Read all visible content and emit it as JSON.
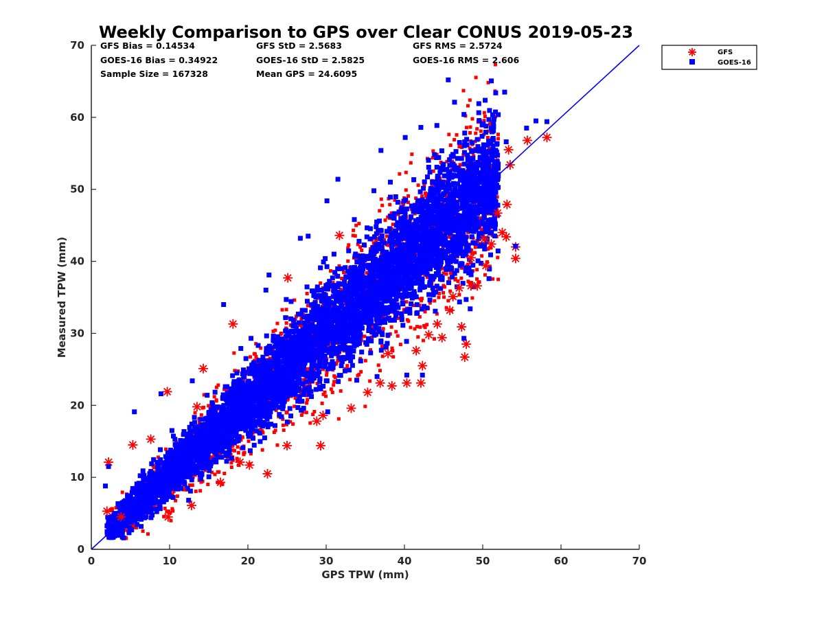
{
  "chart_data": {
    "type": "scatter",
    "title": "Weekly Comparison to GPS over Clear CONUS 2019-05-23",
    "xlabel": "GPS TPW (mm)",
    "ylabel": "Measured TPW (mm)",
    "xlim": [
      0,
      70
    ],
    "ylim": [
      0,
      70
    ],
    "xticks": [
      "0",
      "10",
      "20",
      "30",
      "40",
      "50",
      "60",
      "70"
    ],
    "yticks": [
      "0",
      "10",
      "20",
      "30",
      "40",
      "50",
      "60",
      "70"
    ],
    "grid": false,
    "legend_position": "outside top-right",
    "stats": {
      "gfs_bias": "GFS Bias = 0.14534",
      "gfs_std": "GFS StD = 2.5683",
      "gfs_rms": "GFS RMS = 2.5724",
      "goes_bias": "GOES-16 Bias = 0.34922",
      "goes_std": "GOES-16 StD = 2.5825",
      "goes_rms": "GOES-16 RMS = 2.606",
      "sample_size": "Sample Size = 167328",
      "mean_gps": "Mean GPS = 24.6095"
    },
    "reference_line": {
      "x": [
        0,
        70
      ],
      "y": [
        0,
        70
      ],
      "color": "#0000ff"
    },
    "series": [
      {
        "name": "GFS",
        "marker": "asterisk",
        "color": "#ff0000",
        "points": [
          [
            2.2,
            12.1
          ],
          [
            5.3,
            14.5
          ],
          [
            9.7,
            21.9
          ],
          [
            18.1,
            31.3
          ],
          [
            22.5,
            10.5
          ],
          [
            29.3,
            14.4
          ],
          [
            29.6,
            18.6
          ],
          [
            38.4,
            22.7
          ],
          [
            40.3,
            23.1
          ],
          [
            42.1,
            23.1
          ],
          [
            41.5,
            27.6
          ],
          [
            42.3,
            25.5
          ],
          [
            44.2,
            31.3
          ],
          [
            44.8,
            29.4
          ],
          [
            45.8,
            33.2
          ],
          [
            47.3,
            30.9
          ],
          [
            47.7,
            26.7
          ],
          [
            47.9,
            28.5
          ],
          [
            48.5,
            36.6
          ],
          [
            49.3,
            36.6
          ],
          [
            50.4,
            39.4
          ],
          [
            51.1,
            42.4
          ],
          [
            52.5,
            44.0
          ],
          [
            53.0,
            43.4
          ],
          [
            53.1,
            47.9
          ],
          [
            54.2,
            42.0
          ],
          [
            54.2,
            40.4
          ],
          [
            53.5,
            53.4
          ],
          [
            53.3,
            55.5
          ],
          [
            55.7,
            56.8
          ],
          [
            58.2,
            57.2
          ],
          [
            3.8,
            4.5
          ],
          [
            2.0,
            5.3
          ],
          [
            12.8,
            6.1
          ],
          [
            16.5,
            9.3
          ],
          [
            19.0,
            12.1
          ],
          [
            25.0,
            14.4
          ],
          [
            33.2,
            19.6
          ],
          [
            35.3,
            21.8
          ],
          [
            36.9,
            23.1
          ],
          [
            47.0,
            36.3
          ],
          [
            46.2,
            35.1
          ],
          [
            48.5,
            40.5
          ],
          [
            50.2,
            43.1
          ],
          [
            51.9,
            46.7
          ],
          [
            14.3,
            25.1
          ],
          [
            13.5,
            19.8
          ],
          [
            7.6,
            15.3
          ],
          [
            25.1,
            37.7
          ],
          [
            31.7,
            43.6
          ],
          [
            9.8,
            4.5
          ],
          [
            20.2,
            11.7
          ],
          [
            28.8,
            17.8
          ],
          [
            37.9,
            27.2
          ],
          [
            43.1,
            29.8
          ]
        ]
      },
      {
        "name": "GOES-16",
        "marker": "square",
        "color": "#0000ff",
        "points": [
          [
            45.6,
            65.2
          ],
          [
            46.4,
            62.1
          ],
          [
            49.5,
            61.9
          ],
          [
            52.8,
            63.5
          ],
          [
            56.8,
            59.5
          ],
          [
            58.2,
            59.4
          ],
          [
            55.6,
            58.5
          ],
          [
            53.0,
            56.6
          ],
          [
            47.6,
            60.4
          ],
          [
            42.1,
            58.6
          ],
          [
            40.1,
            57.2
          ],
          [
            37.0,
            55.4
          ],
          [
            36.1,
            49.8
          ],
          [
            31.5,
            51.4
          ],
          [
            30.1,
            48.4
          ],
          [
            27.7,
            43.5
          ],
          [
            26.7,
            43.2
          ],
          [
            22.7,
            38.1
          ],
          [
            22.3,
            36.0
          ],
          [
            16.9,
            34.0
          ],
          [
            12.9,
            23.4
          ],
          [
            8.9,
            21.6
          ],
          [
            5.5,
            19.1
          ],
          [
            2.2,
            11.5
          ],
          [
            1.8,
            8.8
          ],
          [
            7.2,
            5.2
          ],
          [
            12.3,
            8.5
          ],
          [
            20.3,
            13.7
          ],
          [
            30.2,
            19.1
          ],
          [
            36.5,
            24.0
          ],
          [
            40.3,
            24.2
          ],
          [
            42.3,
            24.2
          ],
          [
            47.6,
            29.3
          ],
          [
            48.4,
            33.4
          ],
          [
            50.8,
            37.6
          ],
          [
            54.2,
            42.1
          ],
          [
            47.1,
            41.1
          ],
          [
            45.7,
            47.1
          ],
          [
            43.0,
            45.3
          ],
          [
            35.1,
            40.7
          ],
          [
            28.2,
            35.9
          ],
          [
            24.9,
            34.7
          ],
          [
            20.4,
            29.3
          ],
          [
            14.8,
            21.4
          ],
          [
            10.3,
            16.5
          ],
          [
            3.5,
            3.4
          ],
          [
            5.2,
            7.9
          ],
          [
            8.4,
            12.1
          ],
          [
            11.5,
            13.7
          ],
          [
            15.6,
            18.6
          ],
          [
            18.7,
            22.9
          ],
          [
            23.4,
            26.8
          ],
          [
            26.5,
            30.2
          ],
          [
            29.8,
            33.4
          ],
          [
            33.2,
            36.7
          ],
          [
            36.3,
            38.9
          ],
          [
            39.5,
            41.7
          ],
          [
            42.6,
            45.3
          ],
          [
            45.2,
            48.5
          ],
          [
            48.1,
            51.4
          ],
          [
            50.5,
            53.2
          ],
          [
            44.1,
            54.4
          ],
          [
            38.2,
            51.0
          ],
          [
            33.6,
            45.8
          ],
          [
            31.0,
            41.0
          ],
          [
            19.1,
            27.9
          ],
          [
            6.6,
            10.9
          ],
          [
            4.1,
            5.6
          ],
          [
            2.7,
            2.9
          ],
          [
            9.1,
            10.4
          ]
        ]
      }
    ]
  }
}
